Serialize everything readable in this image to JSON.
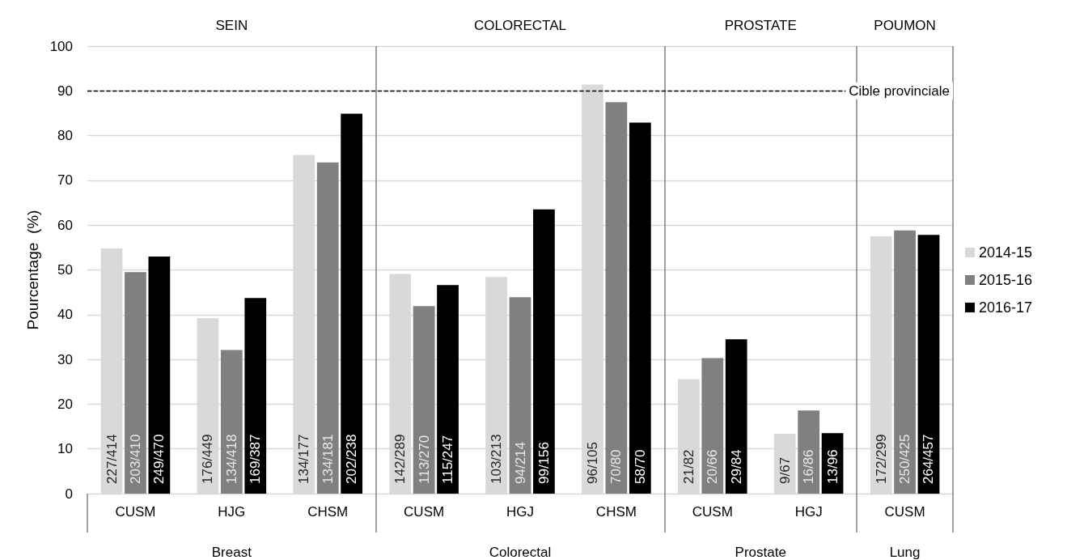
{
  "chart_data": {
    "type": "bar",
    "ylabel": "Pourcentage  (%)",
    "categories": [
      "CUSM",
      "HJG",
      "CHSM",
      "CUSM",
      "HGJ",
      "CHSM",
      "CUSM",
      "HGJ",
      "CUSM"
    ],
    "series": [
      {
        "name": "2014-15",
        "color": "#d9d9d9",
        "values": [
          54.8,
          39.2,
          75.7,
          49.1,
          48.4,
          91.4,
          25.6,
          13.4,
          57.5
        ],
        "value_labels": [
          "227/414",
          "176/449",
          "134/177",
          "142/289",
          "103/213",
          "96/105",
          "21/82",
          "9/67",
          "172/299"
        ]
      },
      {
        "name": "2015-16",
        "color": "#808080",
        "values": [
          49.5,
          32.1,
          74.0,
          41.9,
          43.9,
          87.5,
          30.3,
          18.6,
          58.8
        ],
        "value_labels": [
          "203/410",
          "134/418",
          "134/181",
          "113/270",
          "94/214",
          "70/80",
          "20/66",
          "16/86",
          "250/425"
        ]
      },
      {
        "name": "2016-17",
        "color": "#000000",
        "values": [
          53.0,
          43.7,
          84.9,
          46.6,
          63.5,
          82.9,
          34.5,
          13.5,
          57.8
        ],
        "value_labels": [
          "249/470",
          "169/387",
          "202/238",
          "115/247",
          "99/156",
          "58/70",
          "29/84",
          "13/96",
          "264/457"
        ]
      }
    ],
    "ylim": [
      0,
      100
    ],
    "yticks": [
      0,
      10,
      20,
      30,
      40,
      50,
      60,
      70,
      80,
      90,
      100
    ],
    "grid": "y",
    "legend": "right",
    "ref_lines": [
      {
        "axis": "y",
        "value": 90,
        "label": "Cible provinciale",
        "color": "#000000",
        "line_style": "dashed"
      }
    ],
    "annotations": [
      "SEIN",
      "COLORECTAL",
      "PROSTATE",
      "POUMON",
      "Breast",
      "Colorectal",
      "Prostate",
      "Lung"
    ]
  }
}
